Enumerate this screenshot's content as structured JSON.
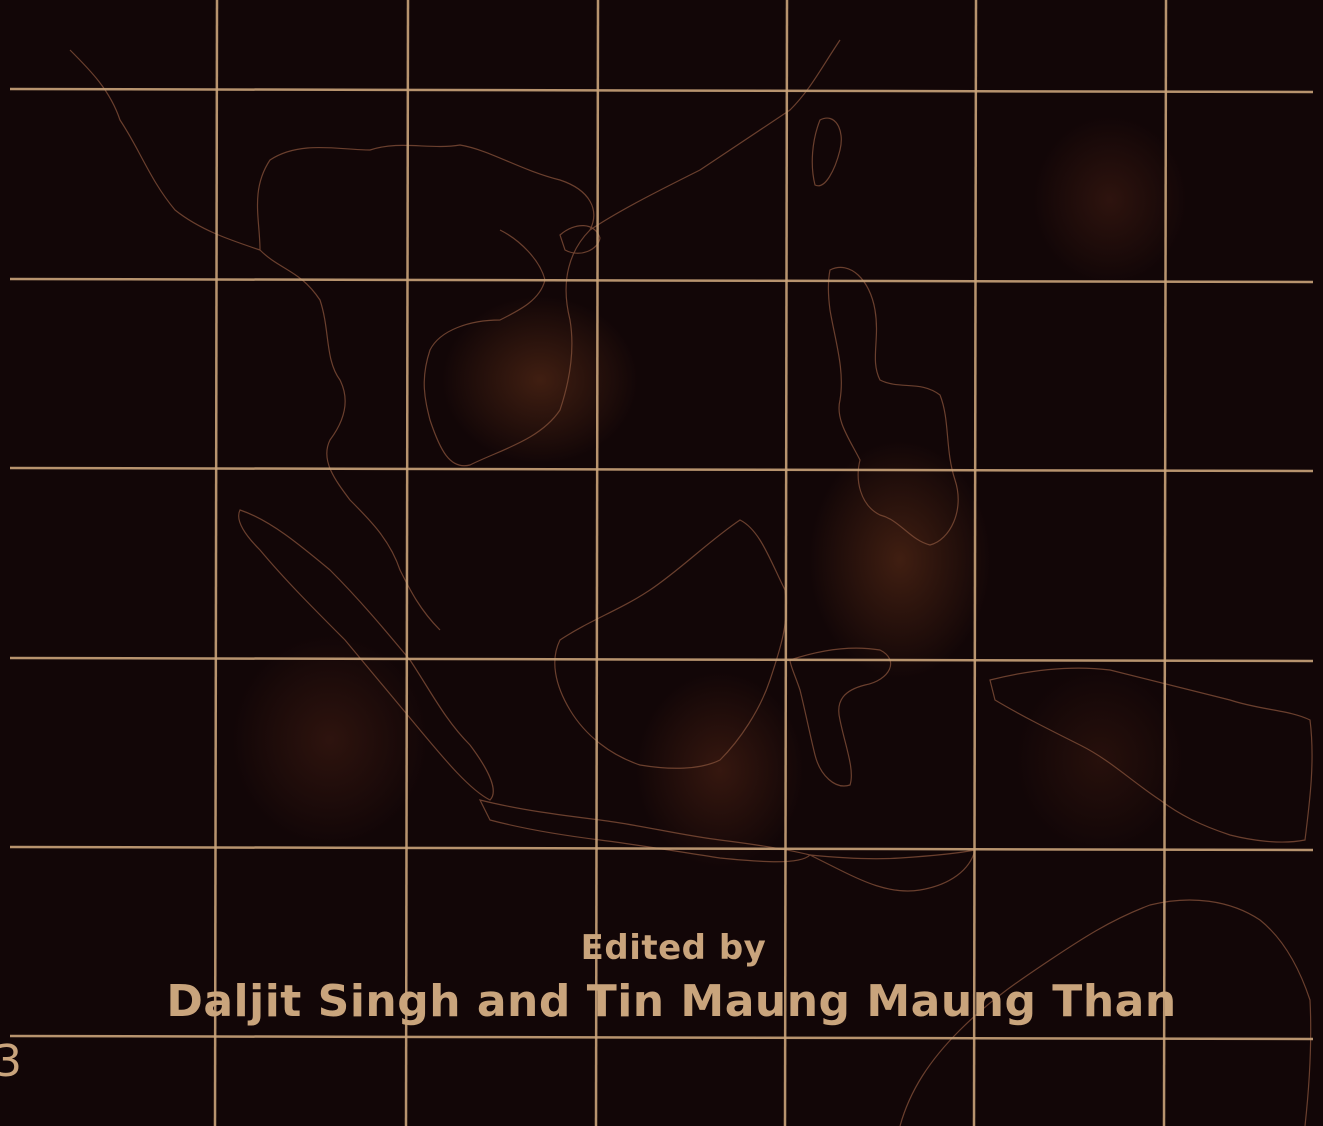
{
  "cover": {
    "background_color": "#120607",
    "grid_color": "#c9a37a",
    "coastline_color": "#7a4a35",
    "text_color": "#c9a47c",
    "map_region_icon": "southeast-asia-map-outline"
  },
  "credits": {
    "edited_by": "Edited by",
    "editors": "Daljit Singh and Tin Maung Maung Than"
  },
  "spine": {
    "partial_glyph": "3"
  }
}
